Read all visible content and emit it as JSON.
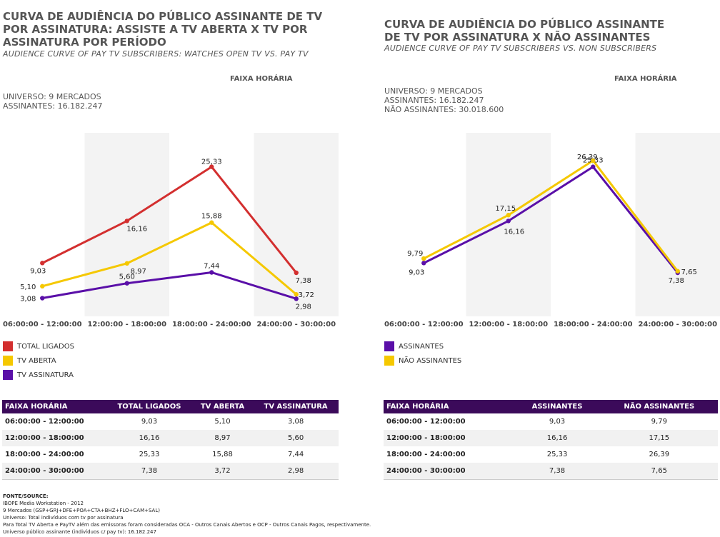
{
  "left_panel": {
    "title": "CURVA DE AUDIÊNCIA DO PÚBLICO ASSINANTE DE TV POR ASSINATURA: ASSISTE A TV ABERTA X TV POR ASSINATURA POR PERÍODO",
    "subtitle": "AUDIENCE CURVE OF PAY TV SUBSCRIBERS: WATCHES OPEN TV VS. PAY TV",
    "faixa_label": "FAIXA HORÁRIA",
    "info_line1": "UNIVERSO: 9 MERCADOS",
    "info_line2": "ASSINANTES: 16.182.247",
    "table": {
      "headers": [
        "FAIXA HORÁRIA",
        "TOTAL LIGADOS",
        "TV ABERTA",
        "TV ASSINATURA"
      ],
      "rows": [
        [
          "06:00:00 - 12:00:00",
          "9,03",
          "5,10",
          "3,08"
        ],
        [
          "12:00:00 - 18:00:00",
          "16,16",
          "8,97",
          "5,60"
        ],
        [
          "18:00:00 - 24:00:00",
          "25,33",
          "15,88",
          "7,44"
        ],
        [
          "24:00:00 - 30:00:00",
          "7,38",
          "3,72",
          "2,98"
        ]
      ]
    }
  },
  "right_panel": {
    "title": "CURVA DE AUDIÊNCIA DO PÚBLICO ASSINANTE DE TV POR ASSINATURA X NÃO ASSINANTES",
    "subtitle": "AUDIENCE CURVE OF PAY TV SUBSCRIBERS VS. NON SUBSCRIBERS",
    "faixa_label": "FAIXA HORÁRIA",
    "info_line1": "UNIVERSO: 9 MERCADOS",
    "info_line2": "ASSINANTES: 16.182.247",
    "info_line3": "NÃO ASSINANTES: 30.018.600",
    "table": {
      "headers": [
        "FAIXA HORÁRIA",
        "ASSINANTES",
        "NÃO ASSINANTES"
      ],
      "rows": [
        [
          "06:00:00 - 12:00:00",
          "9,03",
          "9,79"
        ],
        [
          "12:00:00 - 18:00:00",
          "16,16",
          "17,15"
        ],
        [
          "18:00:00 - 24:00:00",
          "25,33",
          "26,39"
        ],
        [
          "24:00:00 - 30:00:00",
          "7,38",
          "7,65"
        ]
      ]
    }
  },
  "footnote": {
    "head": "FONTE/SOURCE:",
    "lines": [
      "IBOPE Media Workstation - 2012",
      "9 Mercados (GSP+GRJ+DFE+POA+CTA+BHZ+FLO+CAM+SAL)",
      "Universo: Total indivíduos com tv por assinatura",
      "Para Total TV Aberta e PayTV além das emissoras foram consideradas OCA - Outros Canais Abertos e OCP - Outros Canais Pagos, respectivamente.",
      "Universo público assinante (indivíduos c/ pay tv): 16.182.247"
    ]
  },
  "chart_data": [
    {
      "type": "line",
      "categories": [
        "06:00:00 - 12:00:00",
        "12:00:00 - 18:00:00",
        "18:00:00 - 24:00:00",
        "24:00:00 - 30:00:00"
      ],
      "series": [
        {
          "name": "TOTAL LIGADOS",
          "color": "#d32f2f",
          "values": [
            9.03,
            16.16,
            25.33,
            7.38
          ],
          "labels": [
            "9,03",
            "16,16",
            "25,33",
            "7,38"
          ]
        },
        {
          "name": "TV ABERTA",
          "color": "#f5c800",
          "values": [
            5.1,
            8.97,
            15.88,
            3.72
          ],
          "labels": [
            "5,10",
            "8,97",
            "15,88",
            "3,72"
          ]
        },
        {
          "name": "TV ASSINATURA",
          "color": "#5a0fa8",
          "values": [
            3.08,
            5.6,
            7.44,
            2.98
          ],
          "labels": [
            "3,08",
            "5,60",
            "7,44",
            "2,98"
          ]
        }
      ],
      "ylim": [
        0,
        30
      ],
      "grid": false,
      "legend": "bottom-left"
    },
    {
      "type": "line",
      "categories": [
        "06:00:00 - 12:00:00",
        "12:00:00 - 18:00:00",
        "18:00:00 - 24:00:00",
        "24:00:00 - 30:00:00"
      ],
      "series": [
        {
          "name": "ASSINANTES",
          "color": "#5a0fa8",
          "values": [
            9.03,
            16.16,
            25.33,
            7.38
          ],
          "labels": [
            "9,03",
            "16,16",
            "25,33",
            "7,38"
          ]
        },
        {
          "name": "NÃO ASSINANTES",
          "color": "#f5c800",
          "values": [
            9.79,
            17.15,
            26.39,
            7.65
          ],
          "labels": [
            "9,79",
            "17,15",
            "26,39",
            "7,65"
          ]
        }
      ],
      "ylim": [
        0,
        30
      ],
      "grid": false,
      "legend": "bottom-left"
    }
  ]
}
